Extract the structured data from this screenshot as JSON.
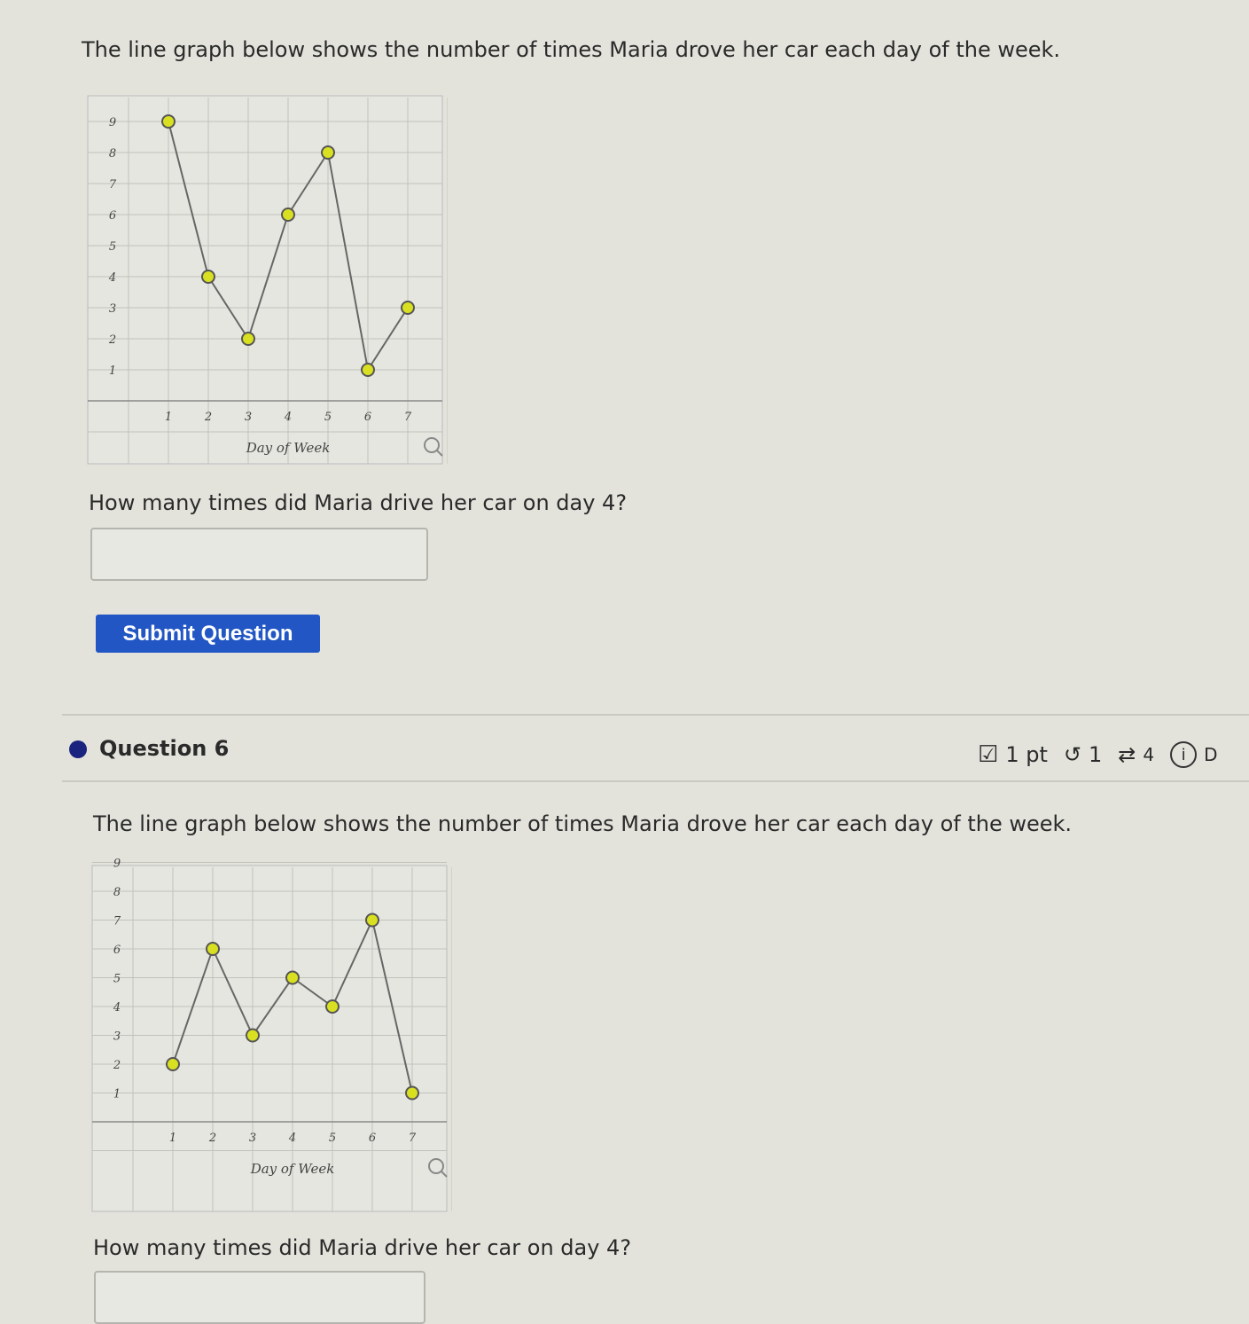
{
  "question5": {
    "prompt": "The line graph below shows the number of times Maria drove her car each day of the week.",
    "question": "How many times did Maria drive her car on day 4?",
    "answer_value": "",
    "submit_label": "Submit Question"
  },
  "question6": {
    "title": "Question 6",
    "points_label": "1 pt",
    "retries": "1",
    "attempts": "4",
    "details_label": "D",
    "prompt": "The line graph below shows the number of times Maria drove her car each day of the week.",
    "question": "How many times did Maria drive her car on day 4?",
    "answer_value": ""
  },
  "colors": {
    "accent": "#2156c4",
    "point_fill": "#d9e021",
    "line": "#666666",
    "bullet": "#1a237e"
  },
  "chart_data": [
    {
      "type": "line",
      "xlabel": "Day of Week",
      "ylabel": "",
      "x": [
        1,
        2,
        3,
        4,
        5,
        6,
        7
      ],
      "y": [
        9,
        4,
        2,
        6,
        8,
        1,
        3
      ],
      "x_ticks": [
        "1",
        "2",
        "3",
        "4",
        "5",
        "6",
        "7"
      ],
      "y_ticks": [
        "1",
        "2",
        "3",
        "4",
        "5",
        "6",
        "7",
        "8",
        "9"
      ],
      "xlim": [
        -1,
        8
      ],
      "ylim": [
        -1,
        9.8
      ],
      "grid": true
    },
    {
      "type": "line",
      "xlabel": "Day of Week",
      "ylabel": "",
      "x": [
        1,
        2,
        3,
        4,
        5,
        6,
        7
      ],
      "y": [
        2,
        6,
        3,
        5,
        4,
        7,
        1
      ],
      "x_ticks": [
        "1",
        "2",
        "3",
        "4",
        "5",
        "6",
        "7"
      ],
      "y_ticks": [
        "1",
        "2",
        "3",
        "4",
        "5",
        "6",
        "7",
        "8",
        "9"
      ],
      "xlim": [
        -1,
        8
      ],
      "ylim": [
        -1,
        9.8
      ],
      "grid": true
    }
  ]
}
